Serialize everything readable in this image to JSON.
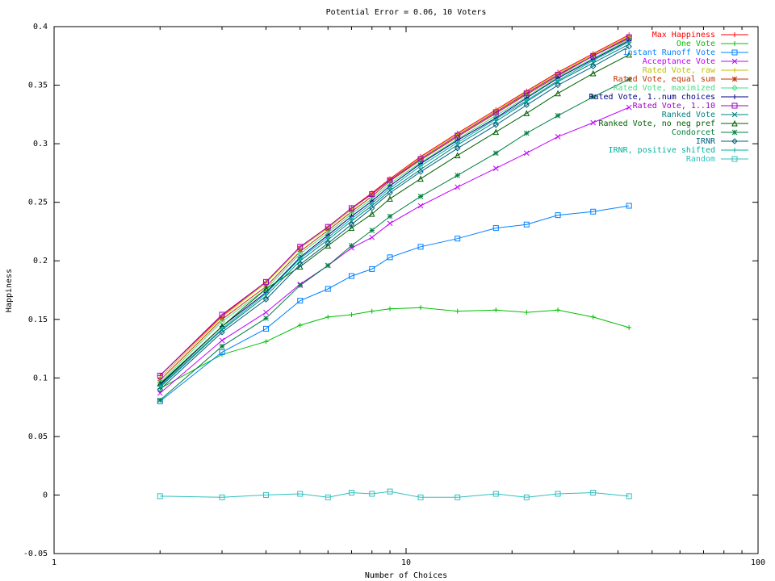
{
  "chart_data": {
    "type": "line",
    "title": "Potential Error = 0.06, 10 Voters",
    "xlabel": "Number of Choices",
    "ylabel": "Happiness",
    "xscale": "log",
    "xlim": [
      1,
      100
    ],
    "ylim": [
      -0.05,
      0.4
    ],
    "x_ticks": [
      1,
      10,
      100
    ],
    "y_ticks": [
      -0.05,
      0,
      0.05,
      0.1,
      0.15,
      0.2,
      0.25,
      0.3,
      0.35,
      0.4
    ],
    "legend_position": "top-right",
    "grid": false,
    "x": [
      2,
      3,
      4,
      5,
      6,
      7,
      8,
      9,
      11,
      14,
      18,
      22,
      27,
      34,
      43
    ],
    "series": [
      {
        "name": "Max Happiness",
        "color": "#ff0000",
        "marker": "plus",
        "values": [
          0.102,
          0.153,
          0.182,
          0.212,
          0.229,
          0.245,
          0.258,
          0.27,
          0.289,
          0.309,
          0.329,
          0.345,
          0.361,
          0.377,
          0.393
        ]
      },
      {
        "name": "One Vote",
        "color": "#00c000",
        "marker": "plus",
        "values": [
          0.091,
          0.12,
          0.131,
          0.145,
          0.152,
          0.154,
          0.157,
          0.159,
          0.16,
          0.157,
          0.158,
          0.156,
          0.158,
          0.152,
          0.143
        ]
      },
      {
        "name": "Instant Runoff Vote",
        "color": "#0080ff",
        "marker": "box",
        "values": [
          0.08,
          0.122,
          0.142,
          0.166,
          0.176,
          0.187,
          0.193,
          0.203,
          0.212,
          0.219,
          0.228,
          0.231,
          0.239,
          0.242,
          0.247
        ]
      },
      {
        "name": "Acceptance Vote",
        "color": "#c000ff",
        "marker": "x",
        "values": [
          0.087,
          0.132,
          0.156,
          0.18,
          0.196,
          0.211,
          0.22,
          0.232,
          0.247,
          0.263,
          0.279,
          0.292,
          0.306,
          0.318,
          0.331
        ]
      },
      {
        "name": "Rated Vote, raw",
        "color": "#c0c000",
        "marker": "plus",
        "values": [
          0.1,
          0.152,
          0.181,
          0.211,
          0.228,
          0.244,
          0.257,
          0.269,
          0.288,
          0.308,
          0.328,
          0.344,
          0.36,
          0.376,
          0.392
        ]
      },
      {
        "name": "Rated Vote, equal sum",
        "color": "#c03000",
        "marker": "star",
        "values": [
          0.098,
          0.15,
          0.178,
          0.208,
          0.226,
          0.242,
          0.255,
          0.268,
          0.286,
          0.306,
          0.326,
          0.342,
          0.358,
          0.375,
          0.39
        ]
      },
      {
        "name": "Rated Vote, maximized",
        "color": "#40e080",
        "marker": "diamond",
        "values": [
          0.096,
          0.148,
          0.176,
          0.206,
          0.224,
          0.24,
          0.253,
          0.266,
          0.284,
          0.304,
          0.324,
          0.34,
          0.357,
          0.373,
          0.389
        ]
      },
      {
        "name": "Rated Vote, 1..num choices",
        "color": "#000080",
        "marker": "plus",
        "values": [
          0.094,
          0.144,
          0.173,
          0.203,
          0.222,
          0.238,
          0.251,
          0.264,
          0.283,
          0.303,
          0.322,
          0.339,
          0.356,
          0.372,
          0.388
        ]
      },
      {
        "name": "Rated Vote, 1..10",
        "color": "#a000c0",
        "marker": "box",
        "values": [
          0.102,
          0.154,
          0.182,
          0.212,
          0.229,
          0.245,
          0.257,
          0.269,
          0.287,
          0.307,
          0.327,
          0.343,
          0.359,
          0.375,
          0.391
        ]
      },
      {
        "name": "Ranked Vote",
        "color": "#008080",
        "marker": "x",
        "values": [
          0.092,
          0.141,
          0.17,
          0.2,
          0.218,
          0.234,
          0.247,
          0.26,
          0.278,
          0.299,
          0.319,
          0.336,
          0.353,
          0.369,
          0.385
        ]
      },
      {
        "name": "Ranked Vote, no neg pref",
        "color": "#006000",
        "marker": "triangle",
        "values": [
          0.095,
          0.144,
          0.176,
          0.195,
          0.213,
          0.228,
          0.24,
          0.253,
          0.27,
          0.29,
          0.31,
          0.326,
          0.343,
          0.36,
          0.376
        ]
      },
      {
        "name": "Condorcet",
        "color": "#008040",
        "marker": "star",
        "values": [
          0.081,
          0.127,
          0.151,
          0.179,
          0.196,
          0.213,
          0.226,
          0.238,
          0.255,
          0.273,
          0.292,
          0.309,
          0.324,
          0.34,
          0.355
        ]
      },
      {
        "name": "IRNR",
        "color": "#006080",
        "marker": "diamond",
        "values": [
          0.09,
          0.139,
          0.167,
          0.197,
          0.215,
          0.231,
          0.245,
          0.258,
          0.276,
          0.296,
          0.316,
          0.333,
          0.35,
          0.366,
          0.383
        ]
      },
      {
        "name": "IRNR, positive shifted",
        "color": "#00b0a0",
        "marker": "plus",
        "values": [
          0.093,
          0.142,
          0.172,
          0.202,
          0.22,
          0.236,
          0.249,
          0.262,
          0.281,
          0.301,
          0.321,
          0.337,
          0.354,
          0.371,
          0.387
        ]
      },
      {
        "name": "Random",
        "color": "#30c0c0",
        "marker": "box",
        "values": [
          -0.001,
          -0.002,
          0.0,
          0.001,
          -0.002,
          0.002,
          0.001,
          0.003,
          -0.002,
          -0.002,
          0.001,
          -0.002,
          0.001,
          0.002,
          -0.001
        ]
      }
    ]
  }
}
